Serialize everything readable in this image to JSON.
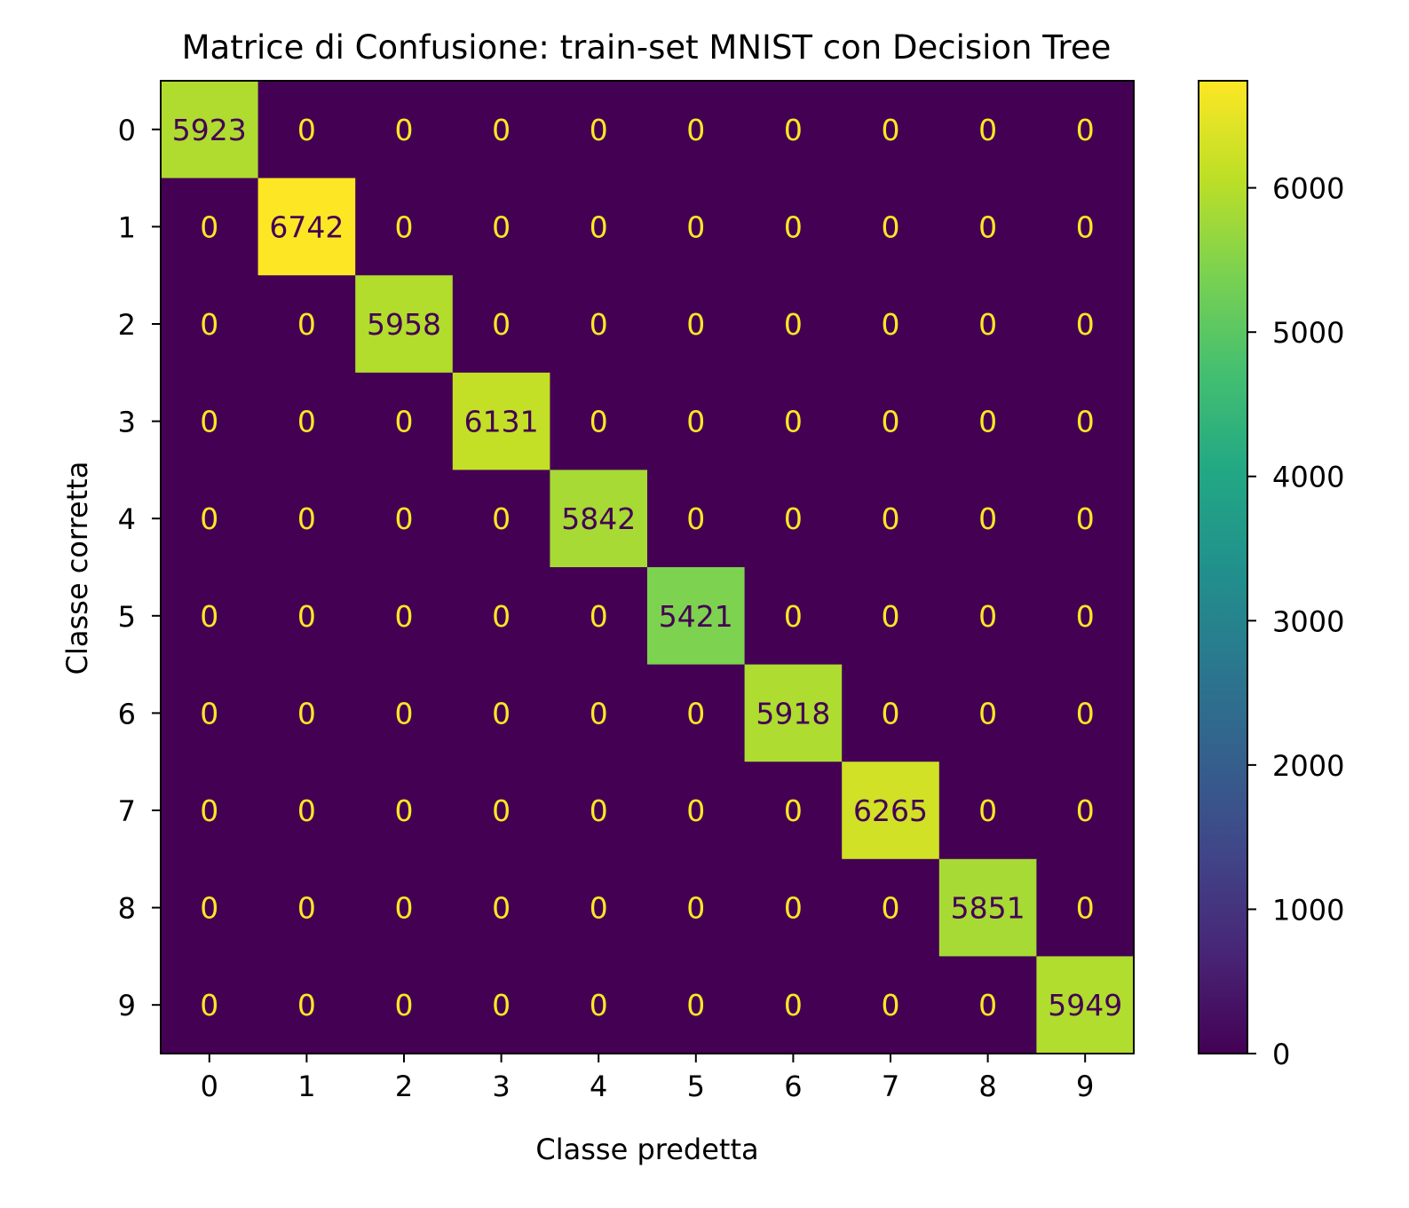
{
  "chart_data": {
    "type": "heatmap",
    "title": "Matrice di Confusione: train-set MNIST con Decision Tree",
    "xlabel": "Classe predetta",
    "ylabel": "Classe corretta",
    "x_categories": [
      "0",
      "1",
      "2",
      "3",
      "4",
      "5",
      "6",
      "7",
      "8",
      "9"
    ],
    "y_categories": [
      "0",
      "1",
      "2",
      "3",
      "4",
      "5",
      "6",
      "7",
      "8",
      "9"
    ],
    "matrix": [
      [
        5923,
        0,
        0,
        0,
        0,
        0,
        0,
        0,
        0,
        0
      ],
      [
        0,
        6742,
        0,
        0,
        0,
        0,
        0,
        0,
        0,
        0
      ],
      [
        0,
        0,
        5958,
        0,
        0,
        0,
        0,
        0,
        0,
        0
      ],
      [
        0,
        0,
        0,
        6131,
        0,
        0,
        0,
        0,
        0,
        0
      ],
      [
        0,
        0,
        0,
        0,
        5842,
        0,
        0,
        0,
        0,
        0
      ],
      [
        0,
        0,
        0,
        0,
        0,
        5421,
        0,
        0,
        0,
        0
      ],
      [
        0,
        0,
        0,
        0,
        0,
        0,
        5918,
        0,
        0,
        0
      ],
      [
        0,
        0,
        0,
        0,
        0,
        0,
        0,
        6265,
        0,
        0
      ],
      [
        0,
        0,
        0,
        0,
        0,
        0,
        0,
        0,
        5851,
        0
      ],
      [
        0,
        0,
        0,
        0,
        0,
        0,
        0,
        0,
        0,
        5949
      ]
    ],
    "colormap": "viridis",
    "colorbar": {
      "range": [
        0,
        6742
      ],
      "ticks": [
        0,
        1000,
        2000,
        3000,
        4000,
        5000,
        6000
      ],
      "tick_labels": [
        "0",
        "1000",
        "2000",
        "3000",
        "4000",
        "5000",
        "6000"
      ]
    },
    "annotation_colors": {
      "on_dark": "#fde725",
      "on_light": "#440154"
    },
    "grid": false
  }
}
